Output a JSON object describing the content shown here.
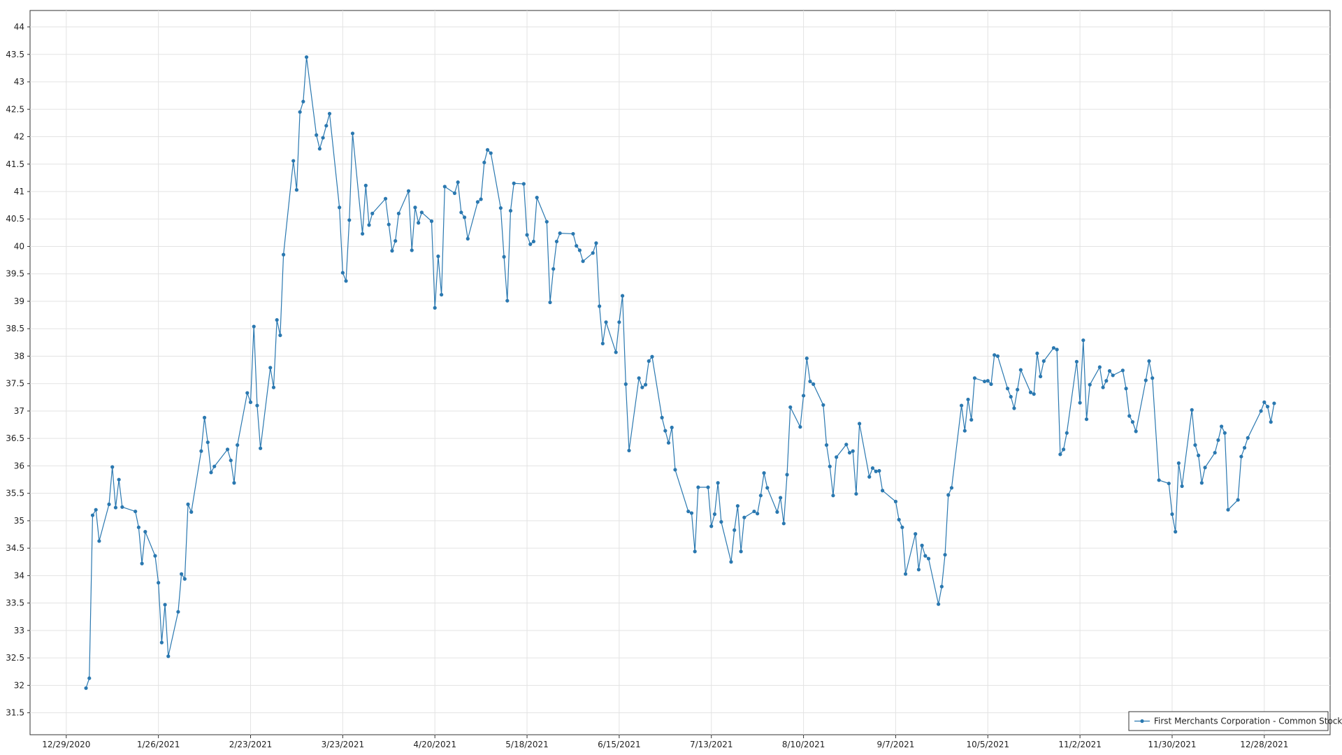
{
  "chart_data": {
    "type": "line",
    "x": [
      "1/4/2021",
      "1/5/2021",
      "1/6/2021",
      "1/7/2021",
      "1/8/2021",
      "1/11/2021",
      "1/12/2021",
      "1/13/2021",
      "1/14/2021",
      "1/15/2021",
      "1/19/2021",
      "1/20/2021",
      "1/21/2021",
      "1/22/2021",
      "1/25/2021",
      "1/26/2021",
      "1/27/2021",
      "1/28/2021",
      "1/29/2021",
      "2/1/2021",
      "2/2/2021",
      "2/3/2021",
      "2/4/2021",
      "2/5/2021",
      "2/8/2021",
      "2/9/2021",
      "2/10/2021",
      "2/11/2021",
      "2/12/2021",
      "2/16/2021",
      "2/17/2021",
      "2/18/2021",
      "2/19/2021",
      "2/22/2021",
      "2/23/2021",
      "2/24/2021",
      "2/25/2021",
      "2/26/2021",
      "3/1/2021",
      "3/2/2021",
      "3/3/2021",
      "3/4/2021",
      "3/5/2021",
      "3/8/2021",
      "3/9/2021",
      "3/10/2021",
      "3/11/2021",
      "3/12/2021",
      "3/15/2021",
      "3/16/2021",
      "3/17/2021",
      "3/18/2021",
      "3/19/2021",
      "3/22/2021",
      "3/23/2021",
      "3/24/2021",
      "3/25/2021",
      "3/26/2021",
      "3/29/2021",
      "3/30/2021",
      "3/31/2021",
      "4/1/2021",
      "4/5/2021",
      "4/6/2021",
      "4/7/2021",
      "4/8/2021",
      "4/9/2021",
      "4/12/2021",
      "4/13/2021",
      "4/14/2021",
      "4/15/2021",
      "4/16/2021",
      "4/19/2021",
      "4/20/2021",
      "4/21/2021",
      "4/22/2021",
      "4/23/2021",
      "4/26/2021",
      "4/27/2021",
      "4/28/2021",
      "4/29/2021",
      "4/30/2021",
      "5/3/2021",
      "5/4/2021",
      "5/5/2021",
      "5/6/2021",
      "5/7/2021",
      "5/10/2021",
      "5/11/2021",
      "5/12/2021",
      "5/13/2021",
      "5/14/2021",
      "5/17/2021",
      "5/18/2021",
      "5/19/2021",
      "5/20/2021",
      "5/21/2021",
      "5/24/2021",
      "5/25/2021",
      "5/26/2021",
      "5/27/2021",
      "5/28/2021",
      "6/1/2021",
      "6/2/2021",
      "6/3/2021",
      "6/4/2021",
      "6/7/2021",
      "6/8/2021",
      "6/9/2021",
      "6/10/2021",
      "6/11/2021",
      "6/14/2021",
      "6/15/2021",
      "6/16/2021",
      "6/17/2021",
      "6/18/2021",
      "6/21/2021",
      "6/22/2021",
      "6/23/2021",
      "6/24/2021",
      "6/25/2021",
      "6/28/2021",
      "6/29/2021",
      "6/30/2021",
      "7/1/2021",
      "7/2/2021",
      "7/6/2021",
      "7/7/2021",
      "7/8/2021",
      "7/9/2021",
      "7/12/2021",
      "7/13/2021",
      "7/14/2021",
      "7/15/2021",
      "7/16/2021",
      "7/19/2021",
      "7/20/2021",
      "7/21/2021",
      "7/22/2021",
      "7/23/2021",
      "7/26/2021",
      "7/27/2021",
      "7/28/2021",
      "7/29/2021",
      "7/30/2021",
      "8/2/2021",
      "8/3/2021",
      "8/4/2021",
      "8/5/2021",
      "8/6/2021",
      "8/9/2021",
      "8/10/2021",
      "8/11/2021",
      "8/12/2021",
      "8/13/2021",
      "8/16/2021",
      "8/17/2021",
      "8/18/2021",
      "8/19/2021",
      "8/20/2021",
      "8/23/2021",
      "8/24/2021",
      "8/25/2021",
      "8/26/2021",
      "8/27/2021",
      "8/30/2021",
      "8/31/2021",
      "9/1/2021",
      "9/2/2021",
      "9/3/2021",
      "9/7/2021",
      "9/8/2021",
      "9/9/2021",
      "9/10/2021",
      "9/13/2021",
      "9/14/2021",
      "9/15/2021",
      "9/16/2021",
      "9/17/2021",
      "9/20/2021",
      "9/21/2021",
      "9/22/2021",
      "9/23/2021",
      "9/24/2021",
      "9/27/2021",
      "9/28/2021",
      "9/29/2021",
      "9/30/2021",
      "10/1/2021",
      "10/4/2021",
      "10/5/2021",
      "10/6/2021",
      "10/7/2021",
      "10/8/2021",
      "10/11/2021",
      "10/12/2021",
      "10/13/2021",
      "10/14/2021",
      "10/15/2021",
      "10/18/2021",
      "10/19/2021",
      "10/20/2021",
      "10/21/2021",
      "10/22/2021",
      "10/25/2021",
      "10/26/2021",
      "10/27/2021",
      "10/28/2021",
      "10/29/2021",
      "11/1/2021",
      "11/2/2021",
      "11/3/2021",
      "11/4/2021",
      "11/5/2021",
      "11/8/2021",
      "11/9/2021",
      "11/10/2021",
      "11/11/2021",
      "11/12/2021",
      "11/15/2021",
      "11/16/2021",
      "11/17/2021",
      "11/18/2021",
      "11/19/2021",
      "11/22/2021",
      "11/23/2021",
      "11/24/2021",
      "11/26/2021",
      "11/29/2021",
      "11/30/2021",
      "12/1/2021",
      "12/2/2021",
      "12/3/2021",
      "12/6/2021",
      "12/7/2021",
      "12/8/2021",
      "12/9/2021",
      "12/10/2021",
      "12/13/2021",
      "12/14/2021",
      "12/15/2021",
      "12/16/2021",
      "12/17/2021",
      "12/20/2021",
      "12/21/2021",
      "12/22/2021",
      "12/23/2021",
      "12/27/2021",
      "12/28/2021",
      "12/29/2021",
      "12/30/2021",
      "12/31/2021"
    ],
    "series": [
      {
        "name": "First Merchants Corporation - Common Stock",
        "color": "#2a78b0",
        "values": [
          31.95,
          32.13,
          35.1,
          35.2,
          34.63,
          35.3,
          35.98,
          35.24,
          35.75,
          35.25,
          35.17,
          34.88,
          34.22,
          34.8,
          34.36,
          33.87,
          32.78,
          33.47,
          32.53,
          33.34,
          34.03,
          33.94,
          35.3,
          35.16,
          36.27,
          36.88,
          36.43,
          35.88,
          35.99,
          36.3,
          36.1,
          35.69,
          36.38,
          37.33,
          37.16,
          38.54,
          37.1,
          36.32,
          37.79,
          37.43,
          38.66,
          38.38,
          39.85,
          41.56,
          41.03,
          42.45,
          42.64,
          43.45,
          42.03,
          41.78,
          41.98,
          42.2,
          42.42,
          40.71,
          39.52,
          39.37,
          40.48,
          42.06,
          40.23,
          41.11,
          40.39,
          40.6,
          40.87,
          40.4,
          39.92,
          40.1,
          40.6,
          41.01,
          39.93,
          40.71,
          40.43,
          40.62,
          40.46,
          38.88,
          39.82,
          39.12,
          41.09,
          40.97,
          41.17,
          40.62,
          40.53,
          40.14,
          40.81,
          40.86,
          41.53,
          41.76,
          41.7,
          40.7,
          39.81,
          39.01,
          40.65,
          41.15,
          41.14,
          40.21,
          40.04,
          40.09,
          40.89,
          40.45,
          38.98,
          39.59,
          40.09,
          40.24,
          40.23,
          40.01,
          39.93,
          39.73,
          39.88,
          40.06,
          38.91,
          38.23,
          38.62,
          38.07,
          38.62,
          39.1,
          37.49,
          36.28,
          37.6,
          37.43,
          37.48,
          37.91,
          37.99,
          36.88,
          36.64,
          36.42,
          36.7,
          35.93,
          35.17,
          35.14,
          34.44,
          35.61,
          35.61,
          34.9,
          35.12,
          35.69,
          34.98,
          34.25,
          34.83,
          35.27,
          34.44,
          35.06,
          35.17,
          35.13,
          35.46,
          35.87,
          35.6,
          35.16,
          35.42,
          34.95,
          35.84,
          37.07,
          36.71,
          37.28,
          37.96,
          37.54,
          37.49,
          37.11,
          36.38,
          35.99,
          35.46,
          36.16,
          36.39,
          36.24,
          36.27,
          35.49,
          36.77,
          35.8,
          35.96,
          35.9,
          35.91,
          35.55,
          35.35,
          35.02,
          34.88,
          34.03,
          34.76,
          34.11,
          34.55,
          34.36,
          34.31,
          33.48,
          33.8,
          34.38,
          35.47,
          35.6,
          37.1,
          36.64,
          37.21,
          36.84,
          37.6,
          37.54,
          37.55,
          37.49,
          38.02,
          38.0,
          37.41,
          37.26,
          37.05,
          37.39,
          37.75,
          37.34,
          37.31,
          38.05,
          37.63,
          37.91,
          38.15,
          38.12,
          36.21,
          36.3,
          36.6,
          37.9,
          37.15,
          38.29,
          36.85,
          37.48,
          37.8,
          37.43,
          37.55,
          37.73,
          37.65,
          37.74,
          37.41,
          36.91,
          36.8,
          36.63,
          37.56,
          37.91,
          37.6,
          35.74,
          35.68,
          35.12,
          34.8,
          36.05,
          35.63,
          37.02,
          36.38,
          36.19,
          35.69,
          35.97,
          36.24,
          36.47,
          36.72,
          36.6,
          35.2,
          35.38,
          36.17,
          36.33,
          36.51,
          37.0,
          37.16,
          37.08,
          36.8,
          37.14
        ]
      }
    ],
    "xlim": [
      "12/18/2020",
      "1/17/2022"
    ],
    "xticks": [
      "12/29/2020",
      "1/26/2021",
      "2/23/2021",
      "3/23/2021",
      "4/20/2021",
      "5/18/2021",
      "6/15/2021",
      "7/13/2021",
      "8/10/2021",
      "9/7/2021",
      "10/5/2021",
      "11/2/2021",
      "11/30/2021",
      "12/28/2021"
    ],
    "ylim": [
      31.1,
      44.3
    ],
    "yticks": [
      31.5,
      32,
      32.5,
      33,
      33.5,
      34,
      34.5,
      35,
      35.5,
      36,
      36.5,
      37,
      37.5,
      38,
      38.5,
      39,
      39.5,
      40,
      40.5,
      41,
      41.5,
      42,
      42.5,
      43,
      43.5,
      44
    ],
    "grid": true,
    "legend": "lower right"
  }
}
